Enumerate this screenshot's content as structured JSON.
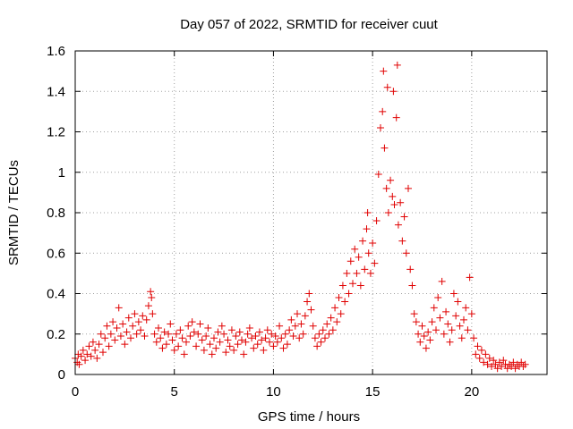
{
  "chart_data": {
    "type": "scatter",
    "title": "Day 057 of 2022, SRMTID for receiver cuut",
    "xlabel": "GPS time / hours",
    "ylabel": "SRMTID / TECUs",
    "xlim": [
      0,
      23.8
    ],
    "ylim": [
      0,
      1.6
    ],
    "x_ticks": [
      0,
      5,
      10,
      15,
      20
    ],
    "x_tick_labels": [
      "0",
      "5",
      "10",
      "15",
      "20"
    ],
    "y_ticks": [
      0,
      0.2,
      0.4,
      0.6,
      0.8,
      1.0,
      1.2,
      1.4,
      1.6
    ],
    "y_tick_labels": [
      "0",
      "0.2",
      "0.4",
      "0.6",
      "0.8",
      "1",
      "1.2",
      "1.4",
      "1.6"
    ],
    "grid": true,
    "marker": "+",
    "marker_color": "#e00000",
    "series": [
      {
        "name": "SRMTID",
        "points": [
          [
            0.0,
            0.08
          ],
          [
            0.1,
            0.06
          ],
          [
            0.15,
            0.1
          ],
          [
            0.2,
            0.05
          ],
          [
            0.3,
            0.09
          ],
          [
            0.4,
            0.12
          ],
          [
            0.5,
            0.07
          ],
          [
            0.6,
            0.1
          ],
          [
            0.7,
            0.14
          ],
          [
            0.8,
            0.09
          ],
          [
            0.9,
            0.16
          ],
          [
            1.0,
            0.12
          ],
          [
            1.1,
            0.08
          ],
          [
            1.2,
            0.15
          ],
          [
            1.3,
            0.2
          ],
          [
            1.4,
            0.11
          ],
          [
            1.5,
            0.18
          ],
          [
            1.6,
            0.24
          ],
          [
            1.7,
            0.14
          ],
          [
            1.8,
            0.2
          ],
          [
            1.9,
            0.26
          ],
          [
            2.0,
            0.17
          ],
          [
            2.1,
            0.23
          ],
          [
            2.2,
            0.33
          ],
          [
            2.3,
            0.19
          ],
          [
            2.4,
            0.25
          ],
          [
            2.5,
            0.15
          ],
          [
            2.6,
            0.21
          ],
          [
            2.7,
            0.28
          ],
          [
            2.8,
            0.18
          ],
          [
            2.9,
            0.24
          ],
          [
            3.0,
            0.3
          ],
          [
            3.1,
            0.2
          ],
          [
            3.2,
            0.26
          ],
          [
            3.3,
            0.22
          ],
          [
            3.4,
            0.29
          ],
          [
            3.5,
            0.19
          ],
          [
            3.6,
            0.27
          ],
          [
            3.7,
            0.34
          ],
          [
            3.8,
            0.41
          ],
          [
            3.85,
            0.38
          ],
          [
            3.9,
            0.3
          ],
          [
            4.0,
            0.2
          ],
          [
            4.1,
            0.16
          ],
          [
            4.2,
            0.23
          ],
          [
            4.3,
            0.18
          ],
          [
            4.4,
            0.13
          ],
          [
            4.5,
            0.21
          ],
          [
            4.6,
            0.15
          ],
          [
            4.7,
            0.2
          ],
          [
            4.8,
            0.25
          ],
          [
            4.9,
            0.17
          ],
          [
            5.0,
            0.12
          ],
          [
            5.1,
            0.2
          ],
          [
            5.2,
            0.14
          ],
          [
            5.3,
            0.22
          ],
          [
            5.4,
            0.18
          ],
          [
            5.5,
            0.1
          ],
          [
            5.6,
            0.16
          ],
          [
            5.7,
            0.24
          ],
          [
            5.8,
            0.19
          ],
          [
            5.9,
            0.26
          ],
          [
            6.0,
            0.21
          ],
          [
            6.1,
            0.14
          ],
          [
            6.2,
            0.2
          ],
          [
            6.3,
            0.25
          ],
          [
            6.4,
            0.17
          ],
          [
            6.5,
            0.12
          ],
          [
            6.6,
            0.19
          ],
          [
            6.7,
            0.23
          ],
          [
            6.8,
            0.15
          ],
          [
            6.9,
            0.1
          ],
          [
            7.0,
            0.18
          ],
          [
            7.1,
            0.13
          ],
          [
            7.2,
            0.21
          ],
          [
            7.3,
            0.16
          ],
          [
            7.4,
            0.24
          ],
          [
            7.5,
            0.2
          ],
          [
            7.6,
            0.11
          ],
          [
            7.7,
            0.17
          ],
          [
            7.8,
            0.14
          ],
          [
            7.9,
            0.22
          ],
          [
            8.0,
            0.12
          ],
          [
            8.1,
            0.19
          ],
          [
            8.2,
            0.15
          ],
          [
            8.3,
            0.21
          ],
          [
            8.4,
            0.17
          ],
          [
            8.5,
            0.1
          ],
          [
            8.6,
            0.16
          ],
          [
            8.7,
            0.2
          ],
          [
            8.8,
            0.23
          ],
          [
            8.9,
            0.18
          ],
          [
            9.0,
            0.13
          ],
          [
            9.1,
            0.19
          ],
          [
            9.2,
            0.15
          ],
          [
            9.3,
            0.21
          ],
          [
            9.4,
            0.17
          ],
          [
            9.5,
            0.12
          ],
          [
            9.6,
            0.18
          ],
          [
            9.7,
            0.22
          ],
          [
            9.8,
            0.16
          ],
          [
            9.9,
            0.2
          ],
          [
            10.0,
            0.14
          ],
          [
            10.1,
            0.19
          ],
          [
            10.2,
            0.16
          ],
          [
            10.3,
            0.24
          ],
          [
            10.4,
            0.18
          ],
          [
            10.5,
            0.13
          ],
          [
            10.6,
            0.2
          ],
          [
            10.7,
            0.15
          ],
          [
            10.8,
            0.22
          ],
          [
            10.9,
            0.27
          ],
          [
            11.0,
            0.19
          ],
          [
            11.1,
            0.24
          ],
          [
            11.2,
            0.3
          ],
          [
            11.3,
            0.18
          ],
          [
            11.4,
            0.25
          ],
          [
            11.5,
            0.2
          ],
          [
            11.6,
            0.29
          ],
          [
            11.7,
            0.36
          ],
          [
            11.8,
            0.4
          ],
          [
            11.9,
            0.32
          ],
          [
            12.0,
            0.24
          ],
          [
            12.1,
            0.18
          ],
          [
            12.2,
            0.14
          ],
          [
            12.3,
            0.2
          ],
          [
            12.4,
            0.16
          ],
          [
            12.5,
            0.22
          ],
          [
            12.6,
            0.18
          ],
          [
            12.7,
            0.25
          ],
          [
            12.8,
            0.2
          ],
          [
            12.9,
            0.28
          ],
          [
            13.0,
            0.22
          ],
          [
            13.1,
            0.33
          ],
          [
            13.2,
            0.26
          ],
          [
            13.3,
            0.38
          ],
          [
            13.4,
            0.3
          ],
          [
            13.5,
            0.44
          ],
          [
            13.6,
            0.36
          ],
          [
            13.7,
            0.5
          ],
          [
            13.8,
            0.4
          ],
          [
            13.9,
            0.56
          ],
          [
            14.0,
            0.45
          ],
          [
            14.1,
            0.62
          ],
          [
            14.2,
            0.5
          ],
          [
            14.3,
            0.58
          ],
          [
            14.4,
            0.44
          ],
          [
            14.5,
            0.66
          ],
          [
            14.6,
            0.52
          ],
          [
            14.7,
            0.72
          ],
          [
            14.75,
            0.8
          ],
          [
            14.8,
            0.6
          ],
          [
            14.9,
            0.5
          ],
          [
            15.0,
            0.65
          ],
          [
            15.1,
            0.55
          ],
          [
            15.2,
            0.76
          ],
          [
            15.3,
            0.99
          ],
          [
            15.4,
            1.22
          ],
          [
            15.5,
            1.3
          ],
          [
            15.55,
            1.5
          ],
          [
            15.6,
            1.12
          ],
          [
            15.7,
            0.92
          ],
          [
            15.75,
            1.42
          ],
          [
            15.8,
            0.8
          ],
          [
            15.9,
            0.96
          ],
          [
            16.0,
            0.88
          ],
          [
            16.05,
            1.4
          ],
          [
            16.1,
            0.84
          ],
          [
            16.2,
            1.27
          ],
          [
            16.25,
            1.53
          ],
          [
            16.3,
            0.74
          ],
          [
            16.4,
            0.85
          ],
          [
            16.5,
            0.66
          ],
          [
            16.6,
            0.78
          ],
          [
            16.7,
            0.6
          ],
          [
            16.8,
            0.92
          ],
          [
            16.9,
            0.52
          ],
          [
            17.0,
            0.44
          ],
          [
            17.1,
            0.3
          ],
          [
            17.2,
            0.26
          ],
          [
            17.3,
            0.2
          ],
          [
            17.4,
            0.16
          ],
          [
            17.5,
            0.24
          ],
          [
            17.6,
            0.19
          ],
          [
            17.7,
            0.13
          ],
          [
            17.8,
            0.21
          ],
          [
            17.9,
            0.17
          ],
          [
            18.0,
            0.26
          ],
          [
            18.1,
            0.33
          ],
          [
            18.2,
            0.22
          ],
          [
            18.3,
            0.38
          ],
          [
            18.4,
            0.28
          ],
          [
            18.5,
            0.46
          ],
          [
            18.6,
            0.2
          ],
          [
            18.7,
            0.31
          ],
          [
            18.8,
            0.25
          ],
          [
            18.9,
            0.16
          ],
          [
            19.0,
            0.22
          ],
          [
            19.1,
            0.4
          ],
          [
            19.2,
            0.29
          ],
          [
            19.3,
            0.36
          ],
          [
            19.4,
            0.24
          ],
          [
            19.5,
            0.18
          ],
          [
            19.6,
            0.27
          ],
          [
            19.7,
            0.33
          ],
          [
            19.8,
            0.22
          ],
          [
            19.9,
            0.48
          ],
          [
            20.0,
            0.3
          ],
          [
            20.1,
            0.18
          ],
          [
            20.2,
            0.1
          ],
          [
            20.3,
            0.14
          ],
          [
            20.4,
            0.08
          ],
          [
            20.5,
            0.12
          ],
          [
            20.6,
            0.06
          ],
          [
            20.7,
            0.1
          ],
          [
            20.8,
            0.05
          ],
          [
            20.9,
            0.08
          ],
          [
            21.0,
            0.04
          ],
          [
            21.1,
            0.07
          ],
          [
            21.2,
            0.05
          ],
          [
            21.3,
            0.03
          ],
          [
            21.4,
            0.06
          ],
          [
            21.5,
            0.04
          ],
          [
            21.6,
            0.07
          ],
          [
            21.7,
            0.05
          ],
          [
            21.8,
            0.03
          ],
          [
            21.9,
            0.05
          ],
          [
            22.0,
            0.04
          ],
          [
            22.1,
            0.06
          ],
          [
            22.2,
            0.03
          ],
          [
            22.3,
            0.05
          ],
          [
            22.4,
            0.04
          ],
          [
            22.5,
            0.06
          ],
          [
            22.6,
            0.04
          ],
          [
            22.7,
            0.05
          ]
        ]
      }
    ]
  }
}
